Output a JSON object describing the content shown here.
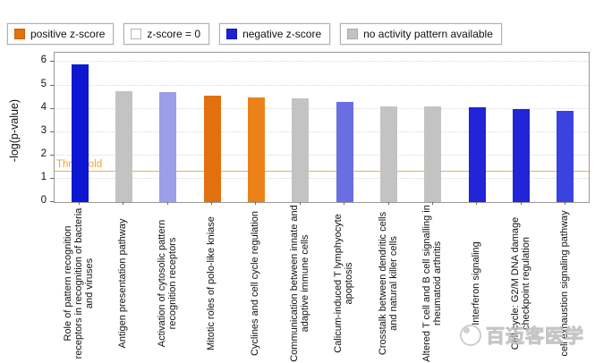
{
  "legend": {
    "items": [
      {
        "label": "positive z-score",
        "swatch_color": "#e2700e",
        "swatch_border": "#c86008"
      },
      {
        "label": "z-score = 0",
        "swatch_color": "#ffffff",
        "swatch_border": "#b5b5b5"
      },
      {
        "label": "negative z-score",
        "swatch_color": "#1c22d6",
        "swatch_border": "#1518b8"
      },
      {
        "label": "no activity pattern available",
        "swatch_color": "#c3c3c3",
        "swatch_border": "#ababab"
      }
    ]
  },
  "chart_data": {
    "type": "bar",
    "title": "",
    "xlabel": "",
    "ylabel": "-log(p-value)",
    "ylim": [
      0,
      6.4
    ],
    "yticks": [
      0,
      1,
      2,
      3,
      4,
      5,
      6
    ],
    "grid": "horizontal dotted lines at integer values",
    "legend_position": "top",
    "threshold": {
      "label": "Threshold",
      "value": 1.3,
      "color": "#efa137"
    },
    "categories": [
      "Role of pattern recognition receptors in recognition of bacteria and viruses",
      "Antigen presentation pathway",
      "Activation of cytosolic pattern recognition receptors",
      "Mitotic roles of polo-like kniase",
      "Cyclines and cell cycle regulation",
      "Communication between innate and adaptive immune cells",
      "Calicum-induced T lymphyocyte apoptosis",
      "Crosstalk between dendritic cells and natural killer cells",
      "Altered T cell and B cell signalling in rheumatoid arthritis",
      "Interferon signaling",
      "Cell cycle: G2/M DNA damage checkpoint regulation",
      "cell exhaustion signaling pathway"
    ],
    "values": [
      5.9,
      4.75,
      4.7,
      4.55,
      4.5,
      4.45,
      4.3,
      4.1,
      4.1,
      4.05,
      4.0,
      3.9
    ],
    "bar_colors": [
      "#0d17d1",
      "#c3c3c3",
      "#9b9ee9",
      "#e2700e",
      "#ec8119",
      "#c3c3c3",
      "#6a6ee3",
      "#c3c3c3",
      "#c3c3c3",
      "#2124d7",
      "#2124d7",
      "#3b42df"
    ],
    "z_category": [
      "negative z-score",
      "no activity pattern available",
      "negative z-score",
      "positive z-score",
      "positive z-score",
      "no activity pattern available",
      "negative z-score",
      "no activity pattern available",
      "no activity pattern available",
      "negative z-score",
      "negative z-score",
      "negative z-score"
    ]
  },
  "watermark": {
    "text": "百迈客医学",
    "icon": "biomarker-logo"
  }
}
